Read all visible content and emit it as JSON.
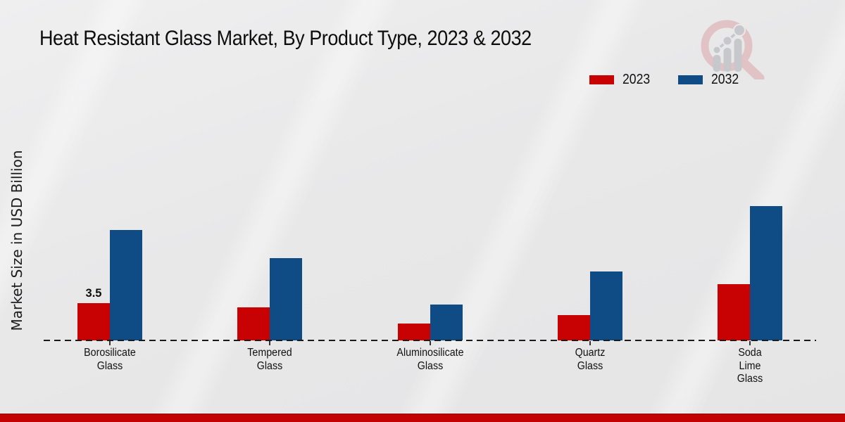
{
  "title": "Heat Resistant Glass Market, By Product Type, 2023 & 2032",
  "y_axis_label": "Market Size in USD Billion",
  "legend": {
    "position": "top-right",
    "items": [
      {
        "label": "2023",
        "color": "#c80202"
      },
      {
        "label": "2032",
        "color": "#0f4c86"
      }
    ]
  },
  "logo": {
    "name": "magnifier-bar-trend-logo",
    "ring_color": "#e2c3c5",
    "bars_color": "#c7c8cc"
  },
  "footer": {
    "bar_color": "#c30303"
  },
  "chart_data": {
    "type": "bar",
    "title": "Heat Resistant Glass Market, By Product Type, 2023 & 2032",
    "xlabel": "",
    "ylabel": "Market Size in USD Billion",
    "categories": [
      "Borosilicate Glass",
      "Tempered Glass",
      "Aluminosilicate Glass",
      "Quartz Glass",
      "Soda Lime Glass"
    ],
    "series": [
      {
        "name": "2023",
        "color": "#c80202",
        "values": [
          3.5,
          3.1,
          1.6,
          2.4,
          5.3
        ]
      },
      {
        "name": "2032",
        "color": "#0f4c86",
        "values": [
          10.4,
          7.7,
          3.4,
          6.5,
          12.6
        ]
      }
    ],
    "value_labels": [
      {
        "series": "2023",
        "category": "Borosilicate Glass",
        "text": "3.5"
      }
    ],
    "ylim": [
      0,
      13.2
    ],
    "grid": false,
    "y_ticks_visible": false,
    "legend_position": "top-right",
    "baseline_style": "dashed"
  }
}
